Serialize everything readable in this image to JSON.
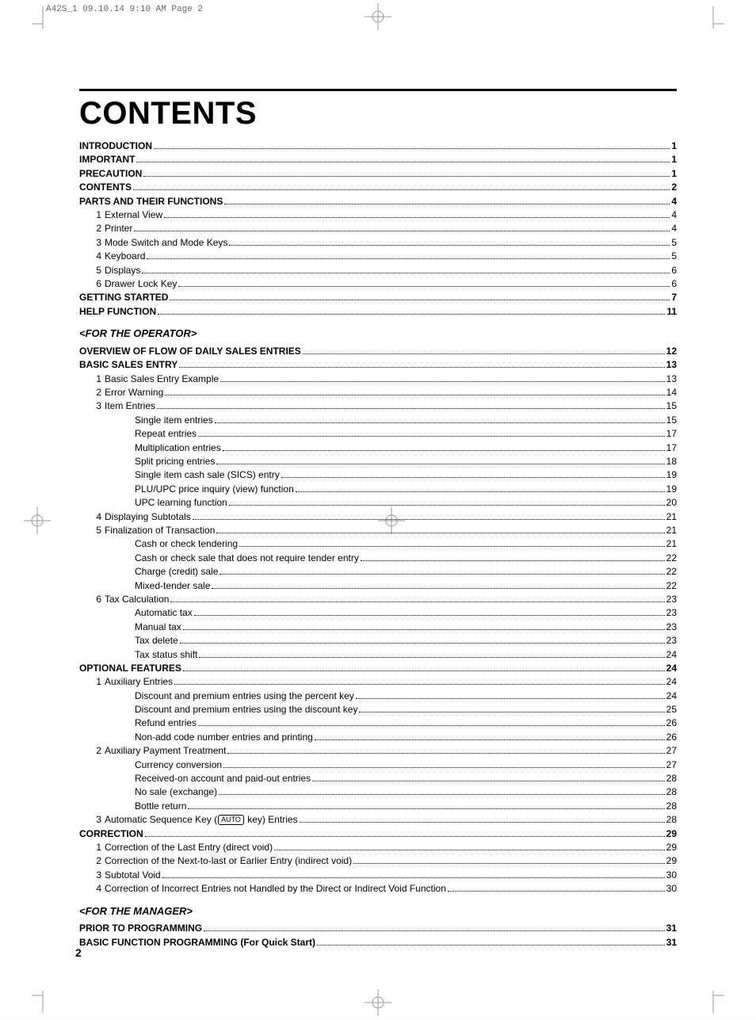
{
  "slug": "A42S_1  09.10.14 9:10 AM  Page 2",
  "title": "CONTENTS",
  "page_number": "2",
  "rule_color": "#000000",
  "toc": [
    {
      "type": "l0",
      "label": "INTRODUCTION",
      "pg": "1"
    },
    {
      "type": "l0",
      "label": "IMPORTANT",
      "pg": "1"
    },
    {
      "type": "l0",
      "label": "PRECAUTION",
      "pg": "1"
    },
    {
      "type": "l0",
      "label": "CONTENTS",
      "pg": "2"
    },
    {
      "type": "l0",
      "label": "PARTS AND THEIR FUNCTIONS",
      "pg": "4"
    },
    {
      "type": "l1",
      "num": "1",
      "label": "External View",
      "pg": "4"
    },
    {
      "type": "l1",
      "num": "2",
      "label": "Printer",
      "pg": "4"
    },
    {
      "type": "l1",
      "num": "3",
      "label": "Mode Switch and Mode Keys",
      "pg": "5"
    },
    {
      "type": "l1",
      "num": "4",
      "label": "Keyboard",
      "pg": "5"
    },
    {
      "type": "l1",
      "num": "5",
      "label": "Displays",
      "pg": "6"
    },
    {
      "type": "l1",
      "num": "6",
      "label": "Drawer Lock Key",
      "pg": "6"
    },
    {
      "type": "l0",
      "label": "GETTING STARTED",
      "pg": "7"
    },
    {
      "type": "l0",
      "label": "HELP FUNCTION",
      "pg": "11"
    },
    {
      "type": "section",
      "label": "<FOR THE OPERATOR>"
    },
    {
      "type": "l0",
      "label": "OVERVIEW OF FLOW OF DAILY SALES ENTRIES",
      "pg": "12"
    },
    {
      "type": "l0",
      "label": "BASIC SALES ENTRY",
      "pg": "13"
    },
    {
      "type": "l1",
      "num": "1",
      "label": "Basic Sales Entry Example",
      "pg": "13"
    },
    {
      "type": "l1",
      "num": "2",
      "label": "Error Warning",
      "pg": "14"
    },
    {
      "type": "l1",
      "num": "3",
      "label": "Item Entries",
      "pg": "15"
    },
    {
      "type": "l2",
      "label": "Single item entries",
      "pg": "15"
    },
    {
      "type": "l2",
      "label": "Repeat entries",
      "pg": "17"
    },
    {
      "type": "l2",
      "label": "Multiplication entries",
      "pg": "17"
    },
    {
      "type": "l2",
      "label": "Split pricing entries",
      "pg": "18"
    },
    {
      "type": "l2",
      "label": "Single item cash sale (SICS) entry",
      "pg": "19"
    },
    {
      "type": "l2",
      "label": "PLU/UPC price inquiry (view) function",
      "pg": "19"
    },
    {
      "type": "l2",
      "label": "UPC learning function",
      "pg": "20"
    },
    {
      "type": "l1",
      "num": "4",
      "label": "Displaying Subtotals",
      "pg": "21"
    },
    {
      "type": "l1",
      "num": "5",
      "label": "Finalization of Transaction",
      "pg": "21"
    },
    {
      "type": "l2",
      "label": "Cash or check tendering",
      "pg": "21"
    },
    {
      "type": "l2",
      "label": "Cash or check sale that does not require tender entry",
      "pg": "22"
    },
    {
      "type": "l2",
      "label": "Charge (credit) sale",
      "pg": "22"
    },
    {
      "type": "l2",
      "label": "Mixed-tender sale",
      "pg": "22"
    },
    {
      "type": "l1",
      "num": "6",
      "label": "Tax Calculation",
      "pg": "23"
    },
    {
      "type": "l2",
      "label": "Automatic tax",
      "pg": "23"
    },
    {
      "type": "l2",
      "label": "Manual tax",
      "pg": "23"
    },
    {
      "type": "l2",
      "label": "Tax delete",
      "pg": "23"
    },
    {
      "type": "l2",
      "label": "Tax status shift",
      "pg": "24"
    },
    {
      "type": "l0",
      "label": "OPTIONAL FEATURES",
      "pg": "24"
    },
    {
      "type": "l1",
      "num": "1",
      "label": "Auxiliary Entries",
      "pg": "24"
    },
    {
      "type": "l2",
      "label": "Discount and premium entries using the percent key",
      "pg": "24"
    },
    {
      "type": "l2",
      "label": "Discount and premium entries using the discount key",
      "pg": "25"
    },
    {
      "type": "l2",
      "label": "Refund entries",
      "pg": "26"
    },
    {
      "type": "l2",
      "label": "Non-add code number entries and printing",
      "pg": "26"
    },
    {
      "type": "l1",
      "num": "2",
      "label": "Auxiliary Payment Treatment",
      "pg": "27"
    },
    {
      "type": "l2",
      "label": "Currency conversion",
      "pg": "27"
    },
    {
      "type": "l2",
      "label": "Received-on account and paid-out entries",
      "pg": "28"
    },
    {
      "type": "l2",
      "label": "No sale (exchange)",
      "pg": "28"
    },
    {
      "type": "l2",
      "label": "Bottle return",
      "pg": "28"
    },
    {
      "type": "l1auto",
      "num": "3",
      "label_before": "Automatic Sequence Key (",
      "btn": "AUTO",
      "label_after": " key) Entries",
      "pg": "28"
    },
    {
      "type": "l0",
      "label": "CORRECTION",
      "pg": "29"
    },
    {
      "type": "l1",
      "num": "1",
      "label": "Correction of the Last Entry (direct void)",
      "pg": "29"
    },
    {
      "type": "l1",
      "num": "2",
      "label": "Correction of the Next-to-last or Earlier Entry (indirect void)",
      "pg": "29"
    },
    {
      "type": "l1",
      "num": "3",
      "label": "Subtotal Void",
      "pg": "30"
    },
    {
      "type": "l1",
      "num": "4",
      "label": "Correction of Incorrect Entries not Handled by the Direct or Indirect Void Function",
      "pg": "30"
    },
    {
      "type": "section",
      "label": "<FOR THE MANAGER>"
    },
    {
      "type": "l0",
      "label": "PRIOR TO PROGRAMMING",
      "pg": "31"
    },
    {
      "type": "l0",
      "label": "BASIC FUNCTION PROGRAMMING (For Quick Start)",
      "pg": "31"
    }
  ]
}
